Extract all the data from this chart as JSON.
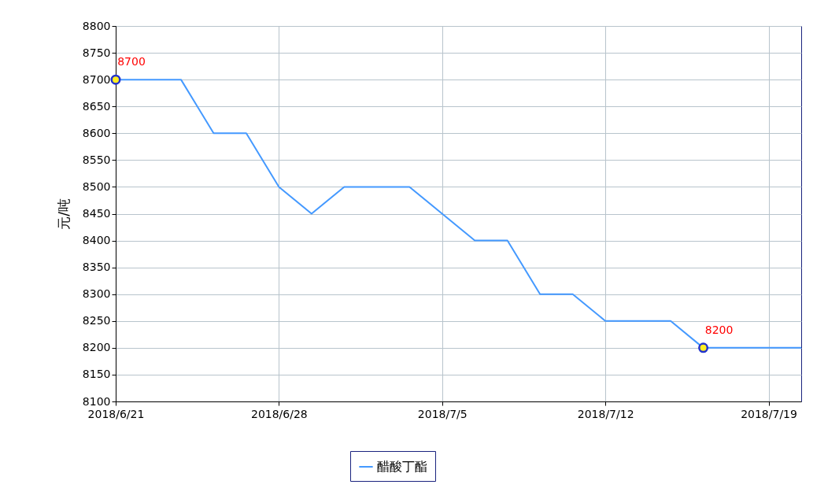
{
  "chart_data": {
    "type": "line",
    "ylabel": "元/吨",
    "categories": [
      "2018/6/21",
      null,
      null,
      null,
      null,
      "2018/6/28",
      null,
      null,
      null,
      null,
      "2018/7/5",
      null,
      null,
      null,
      null,
      "2018/7/12",
      null,
      null,
      null,
      null,
      "2018/7/19",
      null
    ],
    "series": [
      {
        "name": "醋酸丁酯",
        "color": "#4499ff",
        "values": [
          8700,
          8700,
          8700,
          8600,
          8600,
          8500,
          8450,
          8500,
          8500,
          8500,
          8450,
          8400,
          8400,
          8300,
          8300,
          8250,
          8250,
          8250,
          8200,
          8200,
          8200,
          8200
        ],
        "value_labels": [
          "8700",
          null,
          null,
          null,
          null,
          null,
          null,
          null,
          null,
          null,
          null,
          null,
          null,
          null,
          null,
          null,
          null,
          null,
          "8200",
          null,
          null,
          null
        ]
      }
    ],
    "ylim": [
      8100,
      8800
    ],
    "yticks": [
      8100,
      8150,
      8200,
      8250,
      8300,
      8350,
      8400,
      8450,
      8500,
      8550,
      8600,
      8650,
      8700,
      8750,
      8800
    ],
    "grid": true,
    "legend": "bottom",
    "line_style": "solid"
  }
}
